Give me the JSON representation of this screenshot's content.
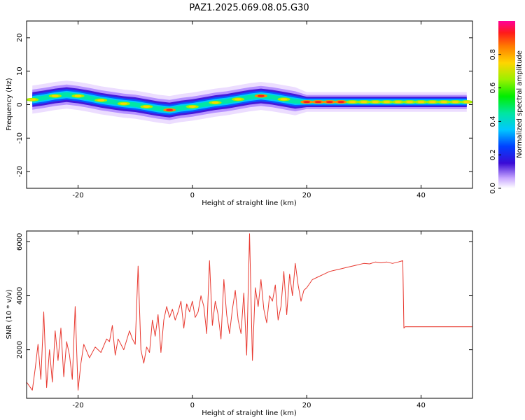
{
  "title": "PAZ1.2025.069.08.05.G30",
  "colors": {
    "snr_line": "#e8382f",
    "frame": "#000000"
  },
  "chart_data": [
    {
      "type": "heatmap",
      "xlabel": "Height of straight line (km)",
      "ylabel": "Frequency (Hz)",
      "xlim": [
        -29,
        49
      ],
      "ylim": [
        -25,
        25
      ],
      "xticks": [
        -20,
        0,
        20,
        40
      ],
      "yticks": [
        20,
        10,
        0,
        -10,
        -20
      ],
      "colorbar": {
        "label": "Normalized spectral amplitude",
        "range": [
          0.0,
          1.0
        ],
        "ticks": [
          "0.0",
          "0.2",
          "0.4",
          "0.6",
          "0.8"
        ]
      },
      "ridge": {
        "height_km": [
          -28,
          -26,
          -24,
          -22,
          -20,
          -18,
          -16,
          -14,
          -12,
          -10,
          -8,
          -6,
          -4,
          -2,
          0,
          2,
          4,
          6,
          8,
          10,
          12,
          14,
          16,
          18,
          20,
          22,
          24,
          26,
          28,
          30,
          32,
          34,
          36,
          38,
          40,
          42,
          44,
          46,
          48
        ],
        "freq_hz": [
          1.5,
          2.0,
          2.6,
          3.0,
          2.6,
          2.0,
          1.3,
          0.8,
          0.3,
          0.0,
          -0.6,
          -1.2,
          -1.6,
          -1.0,
          -0.6,
          0.0,
          0.6,
          1.0,
          1.6,
          2.2,
          2.6,
          2.2,
          1.6,
          1.0,
          0.8,
          0.8,
          0.8,
          0.8,
          0.8,
          0.8,
          0.8,
          0.8,
          0.8,
          0.8,
          0.8,
          0.8,
          0.8,
          0.8,
          0.8
        ]
      }
    },
    {
      "type": "line",
      "xlabel": "Height of straight line (km)",
      "ylabel": "SNR (10 * v/v)",
      "xlim": [
        -29,
        49
      ],
      "ylim": [
        200,
        6400
      ],
      "xticks": [
        -20,
        0,
        20,
        40
      ],
      "yticks": [
        2000,
        4000,
        6000
      ],
      "series": [
        {
          "x": [
            -29,
            -28,
            -27.5,
            -27,
            -26.5,
            -26,
            -25.5,
            -25,
            -24.5,
            -24,
            -23.5,
            -23,
            -22.5,
            -22,
            -21.5,
            -21,
            -20.5,
            -20,
            -19.5,
            -19,
            -18,
            -17,
            -16,
            -15,
            -14.5,
            -14,
            -13.5,
            -13,
            -12,
            -11,
            -10.5,
            -10,
            -9.5,
            -9,
            -8.5,
            -8,
            -7.5,
            -7,
            -6.5,
            -6,
            -5.5,
            -5,
            -4.5,
            -4,
            -3.5,
            -3,
            -2.5,
            -2,
            -1.5,
            -1,
            -0.5,
            0,
            0.5,
            1,
            1.5,
            2,
            2.5,
            3,
            3.5,
            4,
            4.5,
            5,
            5.5,
            6,
            6.5,
            7,
            7.5,
            8,
            8.5,
            9,
            9.5,
            10,
            10.5,
            11,
            11.5,
            12,
            12.5,
            13,
            13.5,
            14,
            14.5,
            15,
            15.5,
            16,
            16.5,
            17,
            17.5,
            18,
            18.5,
            19,
            19.5,
            20,
            21,
            22,
            23,
            24,
            25,
            26,
            27,
            28,
            29,
            30,
            31,
            32,
            33,
            34,
            35,
            36,
            36.8,
            37,
            37.2,
            38,
            40,
            42,
            44,
            46,
            48,
            49
          ],
          "y": [
            800,
            500,
            1300,
            2200,
            900,
            3400,
            600,
            2000,
            800,
            2700,
            1600,
            2800,
            1000,
            2300,
            1800,
            900,
            3600,
            500,
            1500,
            2200,
            1700,
            2100,
            1900,
            2400,
            2300,
            2900,
            1800,
            2400,
            2000,
            2700,
            2400,
            2200,
            5100,
            2000,
            1500,
            2100,
            1900,
            3100,
            2500,
            3300,
            1900,
            3100,
            3600,
            3200,
            3500,
            3100,
            3400,
            3800,
            2800,
            3700,
            3400,
            3800,
            3200,
            3400,
            4000,
            3600,
            2600,
            5300,
            2900,
            3800,
            3300,
            2400,
            4600,
            3300,
            2600,
            3500,
            4200,
            3100,
            2600,
            4100,
            1800,
            6300,
            1600,
            4300,
            3600,
            4600,
            3500,
            3000,
            4000,
            3800,
            4400,
            3100,
            3600,
            4900,
            3300,
            4800,
            4000,
            5200,
            4400,
            3800,
            4200,
            4300,
            4600,
            4700,
            4800,
            4900,
            4950,
            5000,
            5050,
            5100,
            5150,
            5200,
            5180,
            5250,
            5220,
            5250,
            5200,
            5250,
            5300,
            2800,
            2850,
            2850,
            2850,
            2850,
            2850,
            2850,
            2850,
            2850
          ]
        }
      ]
    }
  ]
}
